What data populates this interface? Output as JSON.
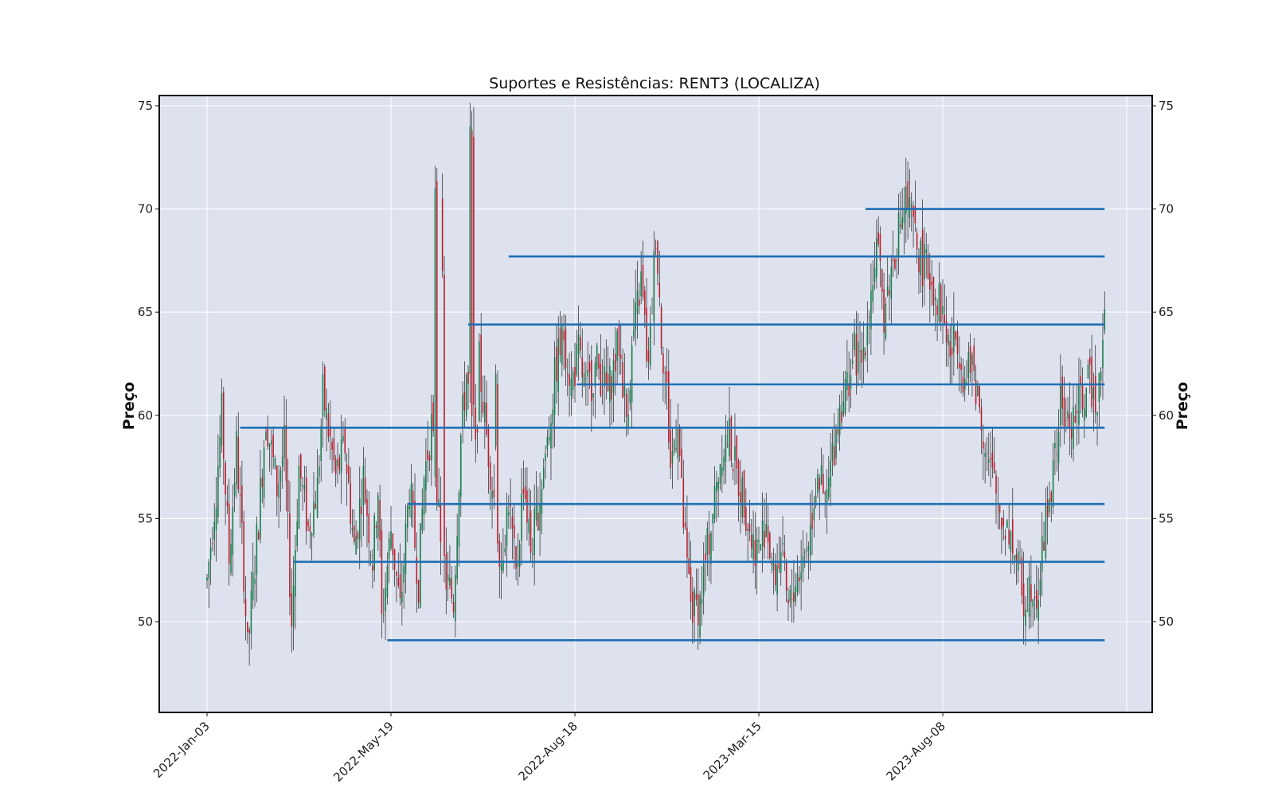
{
  "chart_data": {
    "type": "candlestick",
    "title": "Suportes e Resistências: RENT3 (LOCALIZA)",
    "xlabel": "",
    "ylabel": "Preço",
    "ylabel_right": "Preço",
    "ylim": [
      45.6,
      75.5
    ],
    "yticks": [
      50,
      55,
      60,
      65,
      70,
      75
    ],
    "x_tick_labels": [
      "2022-Jan-03",
      "2022-May-19",
      "2022-Aug-18",
      "2023-Mar-15",
      "2023-Aug-08"
    ],
    "x_tick_index": [
      0,
      100,
      200,
      300,
      400
    ],
    "n_bars": 489,
    "grid": true,
    "colors": {
      "plot_bg": "#dde2ee",
      "grid": "#ffffff",
      "up": "#1a7a4a",
      "down": "#b8202c",
      "wick": "#222222",
      "level": "#1f6fb4"
    },
    "levels": [
      {
        "value": 49.1,
        "start_index": 98
      },
      {
        "value": 52.9,
        "start_index": 47
      },
      {
        "value": 55.7,
        "start_index": 109
      },
      {
        "value": 59.4,
        "start_index": 18
      },
      {
        "value": 61.5,
        "start_index": 201
      },
      {
        "value": 64.4,
        "start_index": 142
      },
      {
        "value": 67.7,
        "start_index": 164
      },
      {
        "value": 70.0,
        "start_index": 358
      }
    ],
    "price_path": [
      [
        0,
        52.0
      ],
      [
        5,
        56.5
      ],
      [
        8,
        60.0
      ],
      [
        12,
        53.0
      ],
      [
        16,
        58.5
      ],
      [
        20,
        52.5
      ],
      [
        22,
        48.5
      ],
      [
        28,
        55.0
      ],
      [
        32,
        60.0
      ],
      [
        38,
        56.5
      ],
      [
        42,
        58.5
      ],
      [
        46,
        50.0
      ],
      [
        50,
        57.5
      ],
      [
        55,
        54.5
      ],
      [
        60,
        56.5
      ],
      [
        63,
        61.0
      ],
      [
        70,
        57.0
      ],
      [
        75,
        58.5
      ],
      [
        80,
        53.5
      ],
      [
        85,
        57.0
      ],
      [
        90,
        53.0
      ],
      [
        93,
        56.5
      ],
      [
        95,
        50.0
      ],
      [
        100,
        54.5
      ],
      [
        105,
        50.5
      ],
      [
        110,
        56.5
      ],
      [
        115,
        52.0
      ],
      [
        118,
        57.0
      ],
      [
        122,
        59.5
      ],
      [
        126,
        55.0
      ],
      [
        130,
        52.0
      ],
      [
        134,
        51.0
      ],
      [
        138,
        59.0
      ],
      [
        141,
        62.0
      ],
      [
        146,
        58.0
      ],
      [
        148,
        62.5
      ],
      [
        152,
        59.0
      ],
      [
        156,
        56.0
      ],
      [
        160,
        53.0
      ],
      [
        164,
        56.0
      ],
      [
        168,
        52.0
      ],
      [
        172,
        57.0
      ],
      [
        176,
        53.5
      ],
      [
        180,
        55.5
      ],
      [
        186,
        59.5
      ],
      [
        190,
        62.5
      ],
      [
        194,
        64.0
      ],
      [
        198,
        61.5
      ],
      [
        202,
        63.0
      ],
      [
        206,
        61.0
      ],
      [
        212,
        62.5
      ],
      [
        218,
        61.0
      ],
      [
        224,
        63.5
      ],
      [
        228,
        60.0
      ],
      [
        232,
        64.0
      ],
      [
        236,
        66.5
      ],
      [
        240,
        62.0
      ],
      [
        244,
        69.0
      ],
      [
        247,
        64.0
      ],
      [
        250,
        61.0
      ],
      [
        252,
        57.5
      ],
      [
        256,
        60.0
      ],
      [
        258,
        56.0
      ],
      [
        261,
        52.5
      ],
      [
        264,
        50.5
      ],
      [
        268,
        51.0
      ],
      [
        272,
        53.5
      ],
      [
        276,
        56.0
      ],
      [
        280,
        58.5
      ],
      [
        284,
        59.0
      ],
      [
        288,
        57.0
      ],
      [
        292,
        56.0
      ],
      [
        296,
        54.0
      ],
      [
        300,
        53.5
      ],
      [
        304,
        55.0
      ],
      [
        308,
        52.0
      ],
      [
        312,
        53.5
      ],
      [
        316,
        50.5
      ],
      [
        320,
        52.0
      ],
      [
        324,
        53.0
      ],
      [
        328,
        54.5
      ],
      [
        332,
        57.5
      ],
      [
        336,
        55.5
      ],
      [
        340,
        58.0
      ],
      [
        344,
        60.5
      ],
      [
        348,
        61.5
      ],
      [
        352,
        63.0
      ],
      [
        356,
        62.5
      ],
      [
        360,
        65.5
      ],
      [
        364,
        68.0
      ],
      [
        368,
        65.0
      ],
      [
        372,
        67.0
      ],
      [
        376,
        69.0
      ],
      [
        380,
        70.5
      ],
      [
        384,
        69.0
      ],
      [
        388,
        67.5
      ],
      [
        392,
        67.0
      ],
      [
        396,
        66.0
      ],
      [
        400,
        65.0
      ],
      [
        404,
        63.0
      ],
      [
        408,
        64.0
      ],
      [
        412,
        61.5
      ],
      [
        416,
        62.5
      ],
      [
        420,
        60.5
      ],
      [
        424,
        58.0
      ],
      [
        428,
        56.5
      ],
      [
        432,
        55.0
      ],
      [
        436,
        54.5
      ],
      [
        440,
        53.0
      ],
      [
        444,
        51.0
      ],
      [
        448,
        52.0
      ],
      [
        452,
        51.5
      ],
      [
        456,
        55.0
      ],
      [
        460,
        57.0
      ],
      [
        464,
        60.5
      ],
      [
        468,
        59.5
      ],
      [
        472,
        60.0
      ],
      [
        476,
        61.0
      ],
      [
        480,
        61.5
      ],
      [
        484,
        61.0
      ],
      [
        488,
        65.0
      ]
    ],
    "gaps": [
      {
        "at": 124,
        "from": 57.0,
        "to": 71.0
      },
      {
        "at": 128,
        "from": 70.5,
        "to": 67.0
      },
      {
        "at": 143,
        "from": 62.0,
        "to": 74.0
      },
      {
        "at": 145,
        "from": 73.5,
        "to": 60.5
      },
      {
        "at": 157,
        "from": 58.5,
        "to": 62.0
      }
    ]
  }
}
